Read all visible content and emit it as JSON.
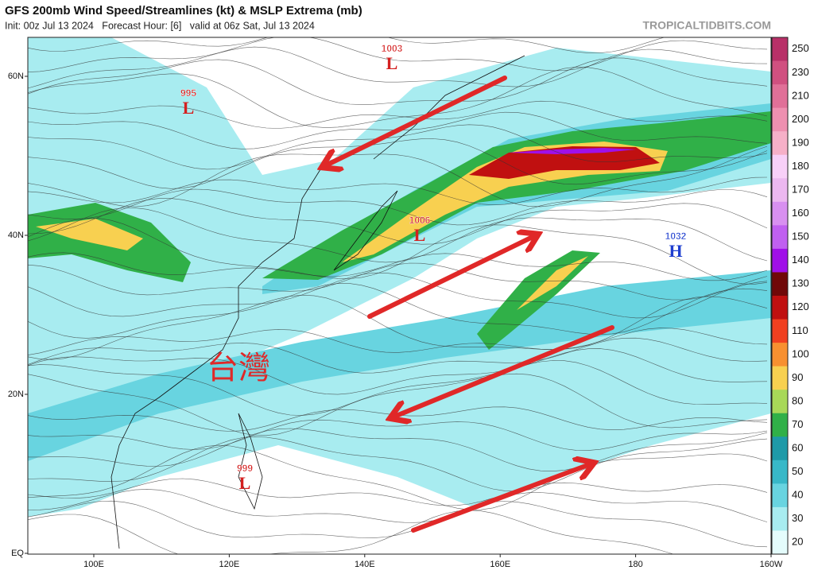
{
  "header": {
    "title": "GFS 200mb Wind Speed/Streamlines (kt) & MSLP Extrema (mb)",
    "subtitle": "Init: 00z Jul 13 2024   Forecast Hour: [6]   valid at 06z Sat, Jul 13 2024",
    "source": "TROPICALTIDBITS.COM"
  },
  "map": {
    "lat_labels": [
      "60N",
      "40N",
      "20N",
      "EQ"
    ],
    "lon_labels": [
      "100E",
      "120E",
      "140E",
      "160E",
      "180",
      "160W"
    ],
    "annotation": "台灣",
    "pressure_centers": [
      {
        "value": "1003",
        "label": "L"
      },
      {
        "value": "995",
        "label": "L"
      },
      {
        "value": "1006",
        "label": "L"
      },
      {
        "value": "1032",
        "label": "H"
      },
      {
        "value": "999",
        "label": "L"
      }
    ]
  },
  "colorbar": {
    "ticks": [
      250,
      230,
      210,
      200,
      190,
      180,
      170,
      160,
      150,
      140,
      130,
      120,
      110,
      100,
      90,
      80,
      70,
      60,
      50,
      40,
      30,
      20
    ],
    "colors": [
      "#b83068",
      "#d05080",
      "#e07098",
      "#ee90b0",
      "#f6b0c8",
      "#f8d0f8",
      "#ecb8f0",
      "#d890f0",
      "#c060f0",
      "#a010e8",
      "#700808",
      "#c01010",
      "#f04020",
      "#f89030",
      "#f8d050",
      "#a8d858",
      "#30b048",
      "#1e9aa8",
      "#38b8c8",
      "#68d4e0",
      "#a8ecf0",
      "#e4fcfc"
    ]
  }
}
